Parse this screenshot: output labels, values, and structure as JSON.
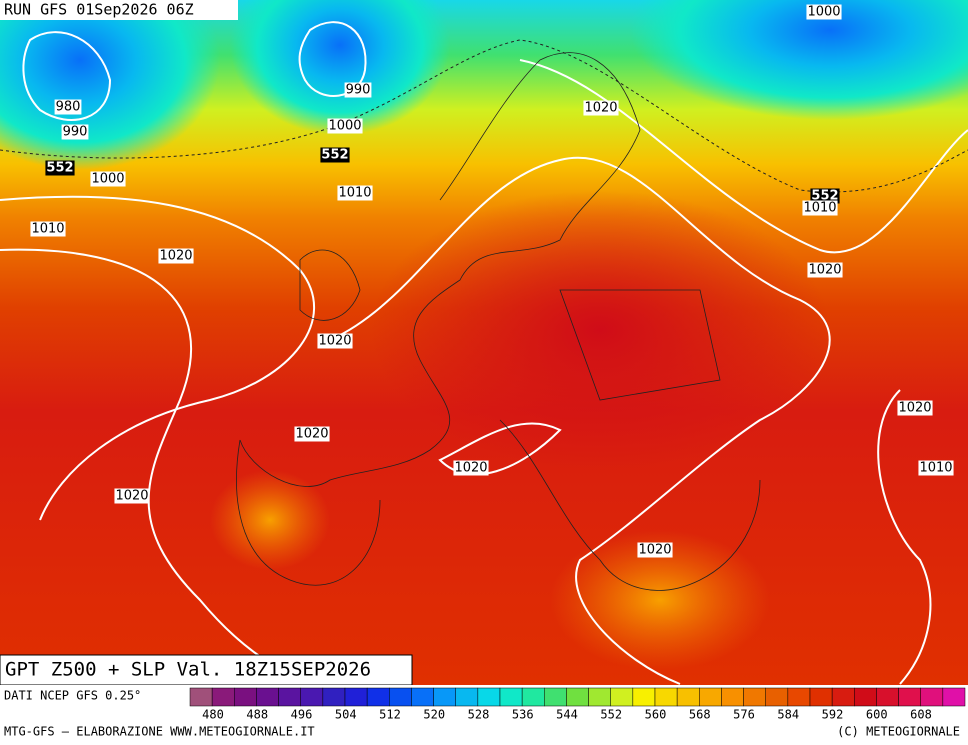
{
  "header": {
    "run": "RUN GFS 01Sep2026 06Z"
  },
  "title": "GPT Z500 + SLP Val. 18Z15SEP2026",
  "map": {
    "labels": [
      "980",
      "990",
      "552",
      "1000",
      "1010",
      "1020",
      "990",
      "1000",
      "552",
      "1010",
      "1000",
      "1020",
      "552",
      "1010",
      "1020",
      "1020",
      "1020",
      "1020",
      "1020",
      "1020",
      "1010",
      "1020"
    ]
  },
  "legend": {
    "source": "DATI NCEP GFS 0.25°",
    "ticks": [
      480,
      488,
      496,
      504,
      512,
      520,
      528,
      536,
      544,
      552,
      560,
      568,
      576,
      584,
      592,
      600,
      608
    ],
    "colors": [
      "#a0507a",
      "#8a1a7a",
      "#7a1080",
      "#6a1090",
      "#5a14a0",
      "#4a18b0",
      "#3020c0",
      "#2020d8",
      "#1030e8",
      "#0850f0",
      "#0870f8",
      "#0898f8",
      "#08b8f0",
      "#08d8e8",
      "#10e8c8",
      "#20e8a0",
      "#40e070",
      "#70e040",
      "#a0e830",
      "#d0f020",
      "#f8f000",
      "#f8d800",
      "#f8c000",
      "#f8a800",
      "#f89000",
      "#f07800",
      "#e86000",
      "#e84800",
      "#e03000",
      "#d81c10",
      "#d00c18",
      "#d8102c",
      "#e0104c",
      "#e0107c",
      "#e010a8"
    ]
  },
  "footer": {
    "left": "MTG-GFS — ELABORAZIONE WWW.METEOGIORNALE.IT",
    "right": "(C) METEOGIORNALE"
  }
}
